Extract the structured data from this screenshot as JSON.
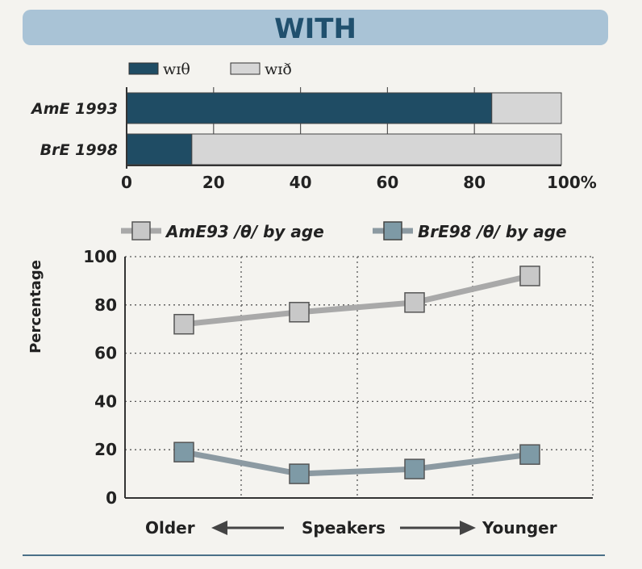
{
  "header": {
    "title": "WITH"
  },
  "colors": {
    "banner": "#a9c3d6",
    "title": "#20506e",
    "dark_bar": "#1f4c64",
    "light_bar": "#d6d6d6",
    "ame_marker": "#c8c8c8",
    "bre_marker": "#7e9aa6",
    "ame_line": "#a9a9a9",
    "bre_line": "#8c9aa2"
  },
  "chart_data": [
    {
      "type": "bar",
      "orientation": "horizontal",
      "stacked": true,
      "categories": [
        "AmE 1993",
        "BrE 1998"
      ],
      "series": [
        {
          "name": "wɪθ",
          "values": [
            84,
            15
          ]
        },
        {
          "name": "wɪð",
          "values": [
            16,
            85
          ]
        }
      ],
      "x_ticks": [
        "0",
        "20",
        "40",
        "60",
        "80",
        "100%"
      ],
      "xlim": [
        0,
        100
      ],
      "grid": true,
      "legend": "top-left"
    },
    {
      "type": "line",
      "categories": [
        "Older",
        "",
        "",
        "Younger"
      ],
      "series": [
        {
          "name": "AmE93 /θ/ by age",
          "values": [
            72,
            77,
            81,
            92
          ]
        },
        {
          "name": "BrE98 /θ/ by age",
          "values": [
            19,
            10,
            12,
            18
          ]
        }
      ],
      "xlabel": "Speakers",
      "x_axis_labels": {
        "left": "Older",
        "center": "Speakers",
        "right": "Younger"
      },
      "ylabel": "Percentage",
      "y_ticks": [
        "0",
        "20",
        "40",
        "60",
        "80",
        "100"
      ],
      "ylim": [
        0,
        100
      ],
      "grid": true,
      "legend": "top"
    }
  ]
}
